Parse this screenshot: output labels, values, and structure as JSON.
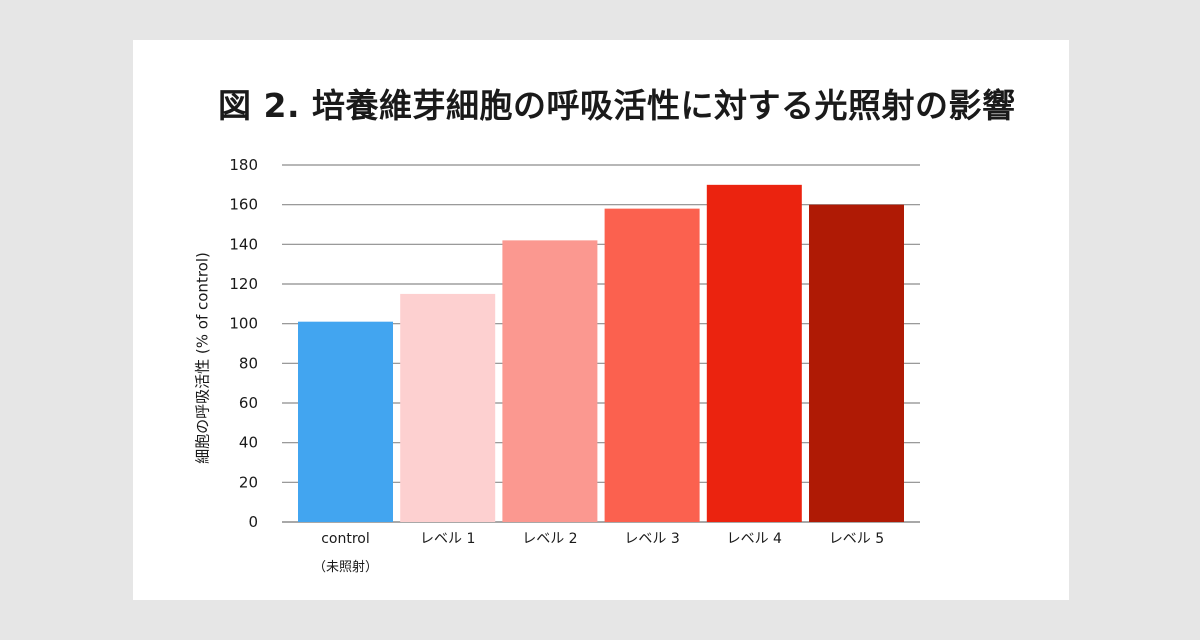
{
  "colors": {
    "page_background": "#e6e6e6",
    "card_background": "#ffffff",
    "gridline": "#8c8c8c",
    "text": "#1a1a1a"
  },
  "chart_data": {
    "type": "bar",
    "title": "図 2. 培養維芽細胞の呼吸活性に対する光照射の影響",
    "ylabel": "細胞の呼吸活性 (% of control)",
    "xlabel": "",
    "ylim": [
      0,
      180
    ],
    "yticks": [
      0,
      20,
      40,
      60,
      80,
      100,
      120,
      140,
      160,
      180
    ],
    "grid": true,
    "legend": "none",
    "categories": [
      {
        "label": "control",
        "sublabel": "（未照射）",
        "value": 101,
        "color": "#42a5f0"
      },
      {
        "label": "レベル 1",
        "sublabel": "",
        "value": 115,
        "color": "#fdd0d0"
      },
      {
        "label": "レベル 2",
        "sublabel": "",
        "value": 142,
        "color": "#fb9890"
      },
      {
        "label": "レベル 3",
        "sublabel": "",
        "value": 158,
        "color": "#fb614f"
      },
      {
        "label": "レベル 4",
        "sublabel": "",
        "value": 170,
        "color": "#eb230f"
      },
      {
        "label": "レベル 5",
        "sublabel": "",
        "value": 160,
        "color": "#af1a05"
      }
    ]
  }
}
